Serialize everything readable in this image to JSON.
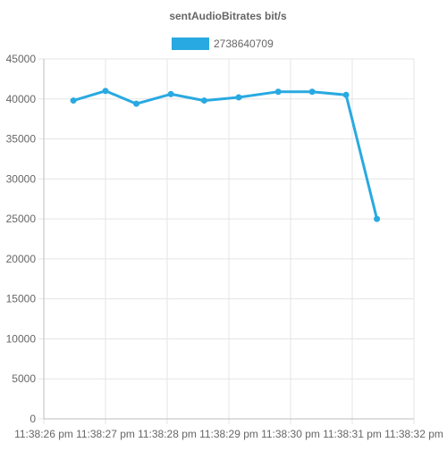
{
  "chart_data": {
    "type": "line",
    "title": "sentAudioBitrates bit/s",
    "xlabel": "",
    "ylabel": "",
    "x_ticks": [
      "11:38:26 pm",
      "11:38:27 pm",
      "11:38:28 pm",
      "11:38:29 pm",
      "11:38:30 pm",
      "11:38:31 pm",
      "11:38:32 pm"
    ],
    "y_ticks": [
      "0",
      "5000",
      "10000",
      "15000",
      "20000",
      "25000",
      "30000",
      "35000",
      "40000",
      "45000"
    ],
    "ylim": [
      0,
      45000
    ],
    "xlim_seconds": [
      0,
      6
    ],
    "grid": true,
    "legend_position": "top",
    "series": [
      {
        "name": "2738640709",
        "color": "#29a9e1",
        "x_seconds": [
          0.48,
          1.0,
          1.5,
          2.06,
          2.6,
          3.16,
          3.8,
          4.35,
          4.9,
          5.4
        ],
        "values": [
          39800,
          41000,
          39400,
          40600,
          39800,
          40200,
          40900,
          40900,
          40500,
          25000
        ]
      }
    ]
  }
}
